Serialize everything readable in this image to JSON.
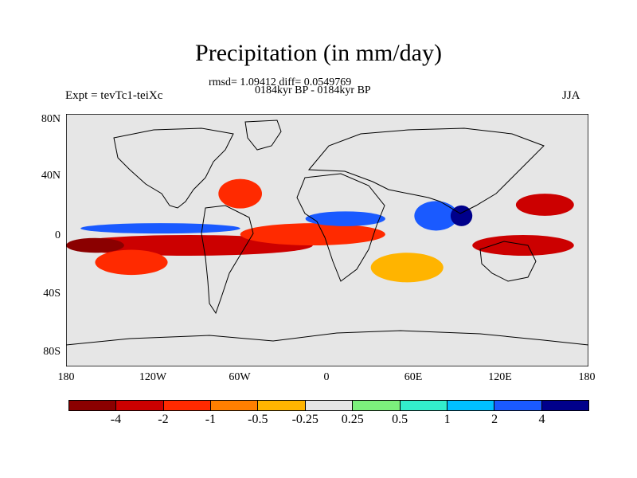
{
  "header": {
    "title": "Precipitation (in mm/day)",
    "stats": "rmsd= 1.09412 diff= 0.0549769",
    "period": "0184kyr BP - 0184kyr BP",
    "experiment": "Expt = tevTc1-teiXc",
    "season": "JJA"
  },
  "chart_data": {
    "type": "heatmap",
    "title": "Precipitation (in mm/day)",
    "variable": "precipitation difference",
    "units": "mm/day",
    "projection": "cylindrical equidistant",
    "xrange": [
      -180,
      180
    ],
    "yrange": [
      -90,
      90
    ],
    "lat_ticks": [
      {
        "value": 80,
        "label": "80N"
      },
      {
        "value": 40,
        "label": "40N"
      },
      {
        "value": 0,
        "label": "0"
      },
      {
        "value": -40,
        "label": "40S"
      },
      {
        "value": -80,
        "label": "80S"
      }
    ],
    "lon_ticks": [
      {
        "value": -180,
        "label": "180"
      },
      {
        "value": -120,
        "label": "120W"
      },
      {
        "value": -60,
        "label": "60W"
      },
      {
        "value": 0,
        "label": "0"
      },
      {
        "value": 60,
        "label": "60E"
      },
      {
        "value": 120,
        "label": "120E"
      },
      {
        "value": 180,
        "label": "180"
      }
    ],
    "levels": [
      "-4",
      "-2",
      "-1",
      "-0.5",
      "-0.25",
      "0.25",
      "0.5",
      "1",
      "2",
      "4"
    ],
    "colors": [
      "#8b0000",
      "#cc0000",
      "#ff2a00",
      "#ff7f00",
      "#ffb400",
      "#e6e6e6",
      "#7cf07c",
      "#33eecc",
      "#00bfff",
      "#1a5aff",
      "#00008b"
    ],
    "regions": [
      {
        "lon": [
          -180,
          -10
        ],
        "lat": [
          -12,
          2
        ],
        "level": 1
      },
      {
        "lon": [
          -160,
          -110
        ],
        "lat": [
          -25,
          -8
        ],
        "level": 2
      },
      {
        "lon": [
          -180,
          -140
        ],
        "lat": [
          -10,
          0
        ],
        "level": 0
      },
      {
        "lon": [
          -170,
          -60
        ],
        "lat": [
          3,
          10
        ],
        "level": 9
      },
      {
        "lon": [
          -75,
          -45
        ],
        "lat": [
          20,
          40
        ],
        "level": 2
      },
      {
        "lon": [
          -60,
          40
        ],
        "lat": [
          -5,
          10
        ],
        "level": 2
      },
      {
        "lon": [
          -15,
          40
        ],
        "lat": [
          8,
          18
        ],
        "level": 9
      },
      {
        "lon": [
          60,
          90
        ],
        "lat": [
          5,
          25
        ],
        "level": 9
      },
      {
        "lon": [
          85,
          100
        ],
        "lat": [
          8,
          22
        ],
        "level": 10
      },
      {
        "lon": [
          100,
          170
        ],
        "lat": [
          -12,
          2
        ],
        "level": 1
      },
      {
        "lon": [
          130,
          170
        ],
        "lat": [
          15,
          30
        ],
        "level": 1
      },
      {
        "lon": [
          30,
          80
        ],
        "lat": [
          -30,
          -10
        ],
        "level": 4
      }
    ]
  },
  "colorbar": {
    "labels": [
      "-4",
      "-2",
      "-1",
      "-0.5",
      "-0.25",
      "0.25",
      "0.5",
      "1",
      "2",
      "4"
    ]
  }
}
